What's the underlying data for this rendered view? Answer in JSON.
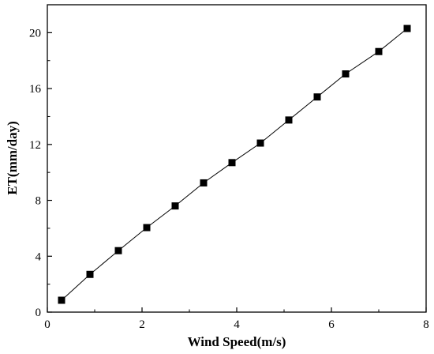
{
  "chart_data": {
    "type": "line",
    "title": "",
    "xlabel": "Wind Speed(m/s)",
    "ylabel": "ET(mm/day)",
    "xlim": [
      0,
      8
    ],
    "ylim": [
      0,
      22
    ],
    "xticks": [
      0,
      2,
      4,
      6,
      8
    ],
    "yticks": [
      0,
      4,
      8,
      12,
      16,
      20
    ],
    "grid": false,
    "legend": "none",
    "marker": "square",
    "color": "#000000",
    "series": [
      {
        "x": [
          0.3,
          0.9,
          1.5,
          2.1,
          2.7,
          3.3,
          3.9,
          4.5,
          5.1,
          5.7,
          6.3,
          7.0,
          7.6
        ],
        "values": [
          0.85,
          2.7,
          4.4,
          6.05,
          7.6,
          9.25,
          10.7,
          12.1,
          13.75,
          15.4,
          17.05,
          18.65,
          20.3
        ]
      }
    ]
  }
}
